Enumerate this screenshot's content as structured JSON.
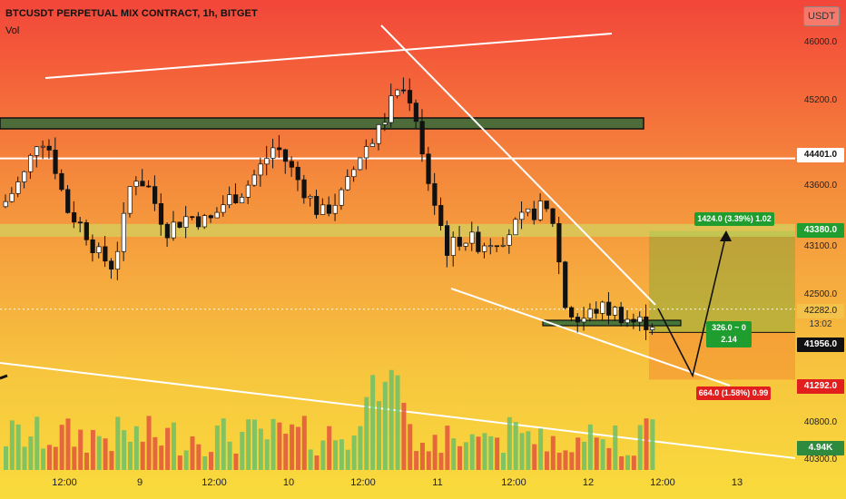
{
  "header": {
    "title": "BTCUSDT PERPETUAL MIX CONTRACT, 1h, BITGET",
    "vol_label": "Vol",
    "currency_button": "USDT"
  },
  "price_axis": {
    "ticks": [
      "46000.0",
      "45200.0",
      "43600.0",
      "43100.0",
      "42500.0",
      "40800.0",
      "40300.0"
    ],
    "labels": {
      "resistance": {
        "text": "44401.0",
        "bg": "#ffffff",
        "fg": "#111111"
      },
      "target": {
        "text": "43380.0",
        "bg": "#1f9d2e",
        "fg": "#ffffff"
      },
      "crosshair": {
        "text": "42282.0",
        "bg": "#f2c24a",
        "fg": "#222222"
      },
      "countdown": {
        "text": "13:02"
      },
      "last": {
        "text": "41956.0",
        "bg": "#111111",
        "fg": "#ffffff"
      },
      "stop": {
        "text": "41292.0",
        "bg": "#e11f1f",
        "fg": "#ffffff"
      },
      "volume": {
        "text": "4.94K",
        "bg": "#2e8b3e",
        "fg": "#ffffff"
      }
    }
  },
  "time_axis": [
    "12:00",
    "9",
    "12:00",
    "10",
    "12:00",
    "11",
    "12:00",
    "12",
    "12:00",
    "13"
  ],
  "position_tool": {
    "target_text": "1424.0 (3.39%) 1.02",
    "entry_text_1": "326.0 ~ 0",
    "entry_text_2": "2.14",
    "stop_text": "664.0 (1.58%) 0.99"
  },
  "chart_data": {
    "type": "candlestick",
    "symbol": "BTCUSDT",
    "interval": "1h",
    "exchange": "BITGET",
    "y_range": [
      40150,
      46500
    ],
    "levels": {
      "resistance": 44401.0,
      "target": 43380.0,
      "entry": 41956.0,
      "stop": 41292.0,
      "crosshair": 42282.0
    },
    "last_volume": "4.94K",
    "colors": {
      "up": "#ffffff",
      "down": "#111111",
      "vol_up": "#6dbf67",
      "vol_down": "#e2553b",
      "zone": "#2f6b3a"
    }
  }
}
